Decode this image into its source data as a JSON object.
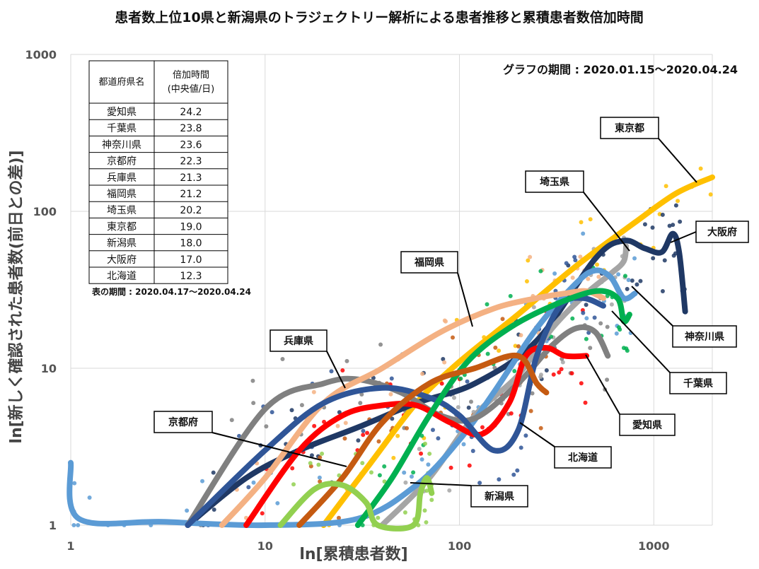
{
  "title": "患者数上位10県と新潟県のトラジェクトリー解析による患者推移と累積患者数倍加時間",
  "period_label": "グラフの期間 : 2020.01.15～2020.04.24",
  "table_period_label": "表の期間 : 2020.04.17～2020.04.24",
  "table": {
    "header_pref": "都道府県名",
    "header_time_line1": "倍加時間",
    "header_time_line2": "(中央値/日)",
    "rows": [
      {
        "pref": "愛知県",
        "value": "24.2"
      },
      {
        "pref": "千葉県",
        "value": "23.8"
      },
      {
        "pref": "神奈川県",
        "value": "23.6"
      },
      {
        "pref": "京都府",
        "value": "22.3"
      },
      {
        "pref": "兵庫県",
        "value": "21.3"
      },
      {
        "pref": "福岡県",
        "value": "21.2"
      },
      {
        "pref": "埼玉県",
        "value": "20.2"
      },
      {
        "pref": "東京都",
        "value": "19.0"
      },
      {
        "pref": "新潟県",
        "value": "18.0"
      },
      {
        "pref": "大阪府",
        "value": "17.0"
      },
      {
        "pref": "北海道",
        "value": "12.3"
      }
    ]
  },
  "chart_data": {
    "type": "line",
    "scale": "log-log",
    "xlabel": "ln[累積患者数]",
    "ylabel": "ln[新しく確認された患者数(前日との差)]",
    "xlim": [
      1,
      2000
    ],
    "ylim": [
      1,
      1000
    ],
    "x_ticks": [
      "1",
      "10",
      "100",
      "1000"
    ],
    "y_ticks": [
      "1",
      "10",
      "100",
      "1000"
    ],
    "x_tick_values": [
      1,
      10,
      100,
      1000
    ],
    "y_tick_values": [
      1,
      10,
      100,
      1000
    ],
    "grid": true,
    "series": [
      {
        "name": "東京都",
        "color": "#ffc000",
        "points": [
          [
            20,
            1
          ],
          [
            35,
            2.5
          ],
          [
            60,
            6
          ],
          [
            100,
            11
          ],
          [
            200,
            22
          ],
          [
            400,
            45
          ],
          [
            800,
            85
          ],
          [
            1300,
            130
          ],
          [
            2000,
            165
          ]
        ]
      },
      {
        "name": "大阪府",
        "color": "#1f3864",
        "points": [
          [
            4,
            1
          ],
          [
            8,
            2
          ],
          [
            15,
            3
          ],
          [
            30,
            4.2
          ],
          [
            60,
            6
          ],
          [
            120,
            8
          ],
          [
            250,
            15
          ],
          [
            500,
            50
          ],
          [
            700,
            65
          ],
          [
            900,
            58
          ],
          [
            1100,
            55
          ],
          [
            1250,
            72
          ],
          [
            1350,
            55
          ],
          [
            1450,
            23
          ]
        ]
      },
      {
        "name": "埼玉県",
        "color": "#a5a5a5",
        "points": [
          [
            40,
            1
          ],
          [
            70,
            2
          ],
          [
            120,
            5
          ],
          [
            200,
            9
          ],
          [
            300,
            18
          ],
          [
            450,
            30
          ],
          [
            600,
            40
          ],
          [
            700,
            48
          ],
          [
            720,
            60
          ]
        ]
      },
      {
        "name": "神奈川県",
        "color": "#5b9bd5",
        "points": [
          [
            1,
            2.5
          ],
          [
            1.1,
            1.1
          ],
          [
            3,
            1.05
          ],
          [
            10,
            1
          ],
          [
            30,
            1.1
          ],
          [
            60,
            1.8
          ],
          [
            100,
            3.5
          ],
          [
            150,
            7
          ],
          [
            250,
            18
          ],
          [
            400,
            35
          ],
          [
            500,
            42
          ],
          [
            600,
            38
          ],
          [
            700,
            28
          ],
          [
            800,
            30
          ]
        ]
      },
      {
        "name": "千葉県",
        "color": "#808080",
        "points": [
          [
            4,
            1
          ],
          [
            10,
            5.5
          ],
          [
            20,
            8
          ],
          [
            30,
            8.5
          ],
          [
            50,
            7
          ],
          [
            80,
            5
          ],
          [
            120,
            4.8
          ],
          [
            200,
            8
          ],
          [
            300,
            14
          ],
          [
            400,
            18
          ],
          [
            500,
            17
          ],
          [
            580,
            12
          ]
        ]
      },
      {
        "name": "愛知県",
        "color": "#ff0000",
        "points": [
          [
            8,
            1
          ],
          [
            15,
            3
          ],
          [
            25,
            5
          ],
          [
            40,
            5.8
          ],
          [
            60,
            5.8
          ],
          [
            90,
            4.5
          ],
          [
            130,
            3.8
          ],
          [
            180,
            6
          ],
          [
            220,
            12
          ],
          [
            280,
            13.5
          ],
          [
            350,
            12
          ],
          [
            450,
            12
          ]
        ]
      },
      {
        "name": "福岡県",
        "color": "#f4b183",
        "points": [
          [
            6,
            1
          ],
          [
            10,
            2
          ],
          [
            20,
            6
          ],
          [
            40,
            10
          ],
          [
            80,
            17
          ],
          [
            150,
            24
          ],
          [
            250,
            28
          ],
          [
            350,
            30
          ],
          [
            450,
            31
          ],
          [
            550,
            28
          ]
        ]
      },
      {
        "name": "北海道",
        "color": "#2f5597",
        "points": [
          [
            4,
            1
          ],
          [
            10,
            3
          ],
          [
            20,
            6
          ],
          [
            40,
            7.5
          ],
          [
            70,
            6.5
          ],
          [
            100,
            5
          ],
          [
            150,
            3
          ],
          [
            200,
            4
          ],
          [
            250,
            12
          ],
          [
            330,
            25
          ],
          [
            430,
            28
          ],
          [
            550,
            25
          ]
        ]
      },
      {
        "name": "兵庫県",
        "color": "#00b050",
        "points": [
          [
            30,
            1
          ],
          [
            45,
            2
          ],
          [
            70,
            5
          ],
          [
            110,
            11
          ],
          [
            180,
            18
          ],
          [
            300,
            25
          ],
          [
            500,
            31
          ],
          [
            650,
            28
          ],
          [
            700,
            20
          ],
          [
            750,
            22
          ]
        ]
      },
      {
        "name": "京都府",
        "color": "#c55a11",
        "points": [
          [
            15,
            1
          ],
          [
            25,
            2
          ],
          [
            40,
            4.5
          ],
          [
            70,
            8
          ],
          [
            120,
            10
          ],
          [
            200,
            12
          ],
          [
            250,
            8
          ],
          [
            280,
            7
          ]
        ]
      },
      {
        "name": "新潟県",
        "color": "#92d050",
        "points": [
          [
            12,
            1
          ],
          [
            18,
            1.7
          ],
          [
            25,
            1.8
          ],
          [
            33,
            1.4
          ],
          [
            38,
            1
          ],
          [
            58,
            1
          ],
          [
            63,
            1.6
          ],
          [
            68,
            2
          ],
          [
            72,
            1.6
          ]
        ]
      }
    ],
    "callouts": [
      {
        "name": "東京都"
      },
      {
        "name": "埼玉県"
      },
      {
        "name": "大阪府"
      },
      {
        "name": "福岡県"
      },
      {
        "name": "兵庫県"
      },
      {
        "name": "神奈川県"
      },
      {
        "name": "千葉県"
      },
      {
        "name": "京都府"
      },
      {
        "name": "愛知県"
      },
      {
        "name": "北海道"
      },
      {
        "name": "新潟県"
      }
    ]
  }
}
